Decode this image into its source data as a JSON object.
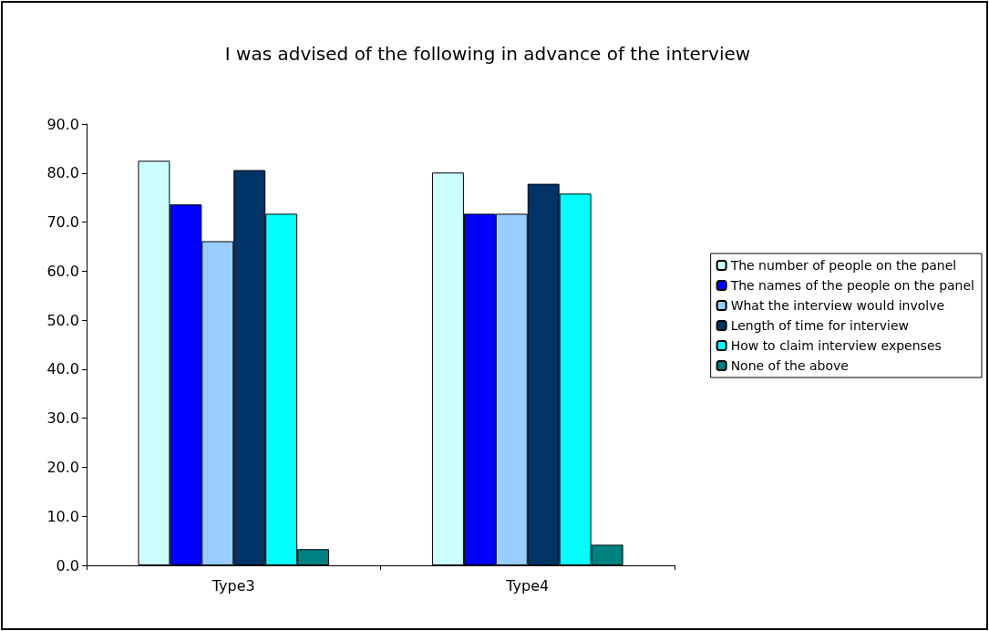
{
  "chart_data": {
    "type": "bar",
    "title": "I was advised of the following in advance of the interview",
    "categories": [
      "Type3",
      "Type4"
    ],
    "series": [
      {
        "name": "The number of people on the panel",
        "color": "#ccffff",
        "values": [
          82.5,
          80.1
        ]
      },
      {
        "name": "The names of the people on the panel",
        "color": "#0000ff",
        "values": [
          73.6,
          71.7
        ]
      },
      {
        "name": "What the interview would involve",
        "color": "#99ccff",
        "values": [
          66.1,
          71.7
        ]
      },
      {
        "name": "Length of time for interview",
        "color": "#003366",
        "values": [
          80.6,
          77.8
        ]
      },
      {
        "name": "How to claim interview expenses",
        "color": "#00ffff",
        "values": [
          71.7,
          75.8
        ]
      },
      {
        "name": "None of the above",
        "color": "#008080",
        "values": [
          3.3,
          4.2
        ]
      }
    ],
    "ylim": [
      0,
      90
    ],
    "yticks": [
      {
        "value": 0,
        "label": "0.0"
      },
      {
        "value": 10,
        "label": "10.0"
      },
      {
        "value": 20,
        "label": "20.0"
      },
      {
        "value": 30,
        "label": "30.0"
      },
      {
        "value": 40,
        "label": "40.0"
      },
      {
        "value": 50,
        "label": "50.0"
      },
      {
        "value": 60,
        "label": "60.0"
      },
      {
        "value": 70,
        "label": "70.0"
      },
      {
        "value": 80,
        "label": "80.0"
      },
      {
        "value": 90,
        "label": "90.0"
      }
    ],
    "grid": false,
    "legend": "right"
  }
}
